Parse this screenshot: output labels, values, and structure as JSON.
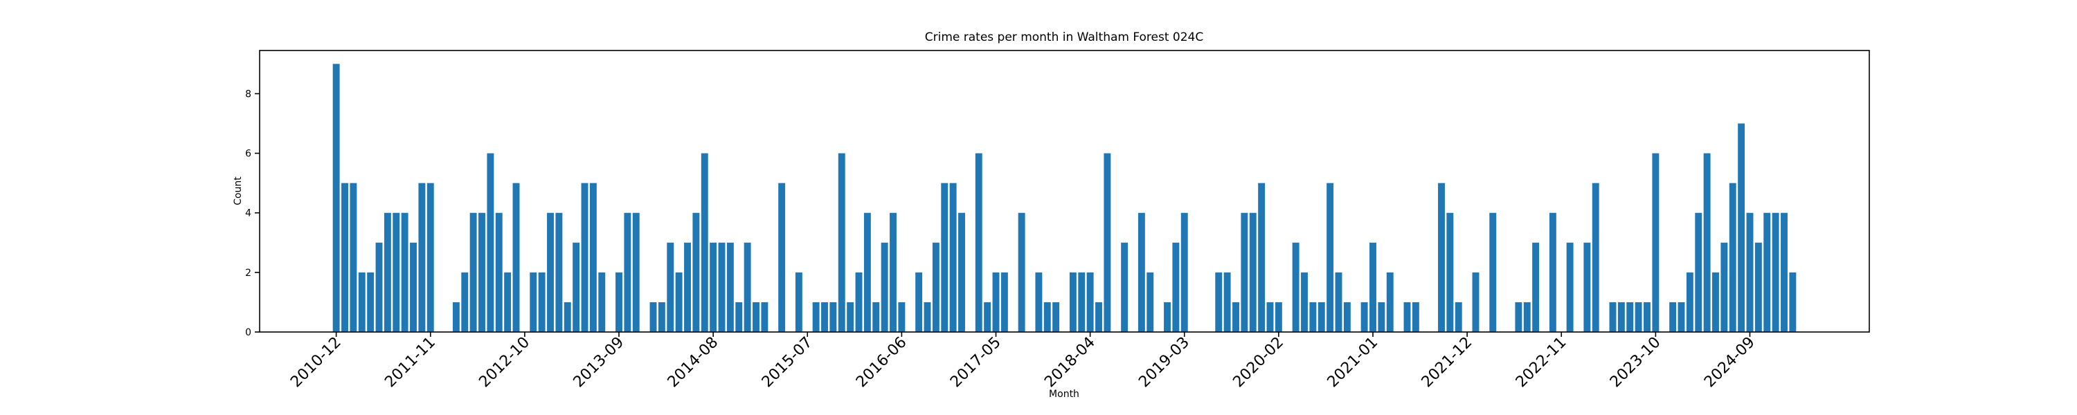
{
  "chart_data": {
    "type": "bar",
    "title": "Crime rates per month in Waltham Forest 024C",
    "x_label": "Month",
    "y_label": "Count",
    "color": "#1f77b4",
    "categories": [
      "2010-12",
      null,
      null,
      null,
      null,
      null,
      null,
      null,
      null,
      null,
      null,
      "2011-11",
      null,
      null,
      null,
      null,
      null,
      null,
      null,
      null,
      null,
      null,
      "2012-10",
      null,
      null,
      null,
      null,
      null,
      null,
      null,
      null,
      null,
      null,
      "2013-09",
      null,
      null,
      null,
      null,
      null,
      null,
      null,
      null,
      null,
      null,
      "2014-08",
      null,
      null,
      null,
      null,
      null,
      null,
      null,
      null,
      null,
      null,
      "2015-07",
      null,
      null,
      null,
      null,
      null,
      null,
      null,
      null,
      null,
      null,
      "2016-06",
      null,
      null,
      null,
      null,
      null,
      null,
      null,
      null,
      null,
      null,
      "2017-05",
      null,
      null,
      null,
      null,
      null,
      null,
      null,
      null,
      null,
      null,
      "2018-04",
      null,
      null,
      null,
      null,
      null,
      null,
      null,
      null,
      null,
      null,
      "2019-03",
      null,
      null,
      null,
      null,
      null,
      null,
      null,
      null,
      null,
      null,
      "2020-02",
      null,
      null,
      null,
      null,
      null,
      null,
      null,
      null,
      null,
      null,
      "2021-01",
      null,
      null,
      null,
      null,
      null,
      null,
      null,
      null,
      null,
      null,
      "2021-12",
      null,
      null,
      null,
      null,
      null,
      null,
      null,
      null,
      null,
      null,
      "2022-11",
      null,
      null,
      null,
      null,
      null,
      null,
      null,
      null,
      null,
      null,
      "2023-10",
      null,
      null,
      null,
      null,
      null,
      null,
      null,
      null,
      null,
      null,
      "2024-09",
      null,
      null,
      null,
      null,
      null
    ],
    "values": [
      9,
      5,
      5,
      2,
      2,
      3,
      4,
      4,
      4,
      3,
      5,
      5,
      0,
      0,
      1,
      2,
      4,
      4,
      6,
      4,
      2,
      5,
      0,
      2,
      2,
      4,
      4,
      1,
      3,
      5,
      5,
      2,
      0,
      2,
      4,
      4,
      0,
      1,
      1,
      3,
      2,
      3,
      4,
      6,
      3,
      3,
      3,
      1,
      3,
      1,
      1,
      0,
      5,
      0,
      2,
      0,
      1,
      1,
      1,
      6,
      1,
      2,
      4,
      1,
      3,
      4,
      1,
      0,
      2,
      1,
      3,
      5,
      5,
      4,
      0,
      6,
      1,
      2,
      2,
      0,
      4,
      0,
      2,
      1,
      1,
      0,
      2,
      2,
      2,
      1,
      6,
      0,
      3,
      0,
      4,
      2,
      0,
      1,
      3,
      4,
      0,
      0,
      0,
      2,
      2,
      1,
      4,
      4,
      5,
      1,
      1,
      0,
      3,
      2,
      1,
      1,
      5,
      2,
      1,
      0,
      1,
      3,
      1,
      2,
      0,
      1,
      1,
      0,
      0,
      5,
      4,
      1,
      0,
      2,
      0,
      4,
      0,
      0,
      1,
      1,
      3,
      0,
      4,
      0,
      3,
      0,
      3,
      5,
      0,
      1,
      1,
      1,
      1,
      1,
      6,
      0,
      1,
      1,
      2,
      4,
      6,
      2,
      3,
      5,
      7,
      4,
      3,
      4,
      4,
      4,
      2
    ],
    "ylim": [
      0,
      9.45
    ],
    "yticks": [
      0,
      2,
      4,
      6,
      8
    ]
  }
}
